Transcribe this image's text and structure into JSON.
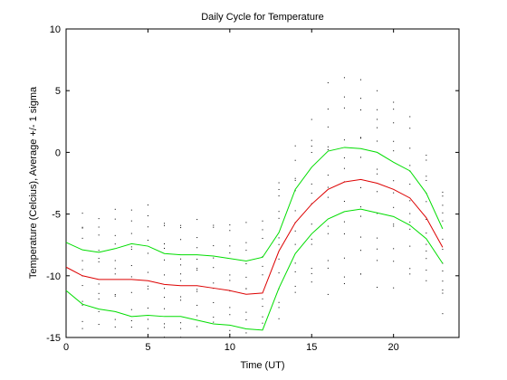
{
  "chart_data": {
    "type": "line",
    "title": "Daily Cycle for Temperature",
    "xlabel": "Time (UT)",
    "ylabel": "Temperature (Celcius), Average +/- 1 sigma",
    "xlim": [
      0,
      24
    ],
    "ylim": [
      -15,
      10
    ],
    "xticks": [
      0,
      5,
      10,
      15,
      20
    ],
    "yticks": [
      -15,
      -10,
      -5,
      0,
      5,
      10
    ],
    "grid": false,
    "x": [
      0,
      1,
      2,
      3,
      4,
      5,
      6,
      7,
      8,
      9,
      10,
      11,
      12,
      13,
      14,
      15,
      16,
      17,
      18,
      19,
      20,
      21,
      22,
      23
    ],
    "series": [
      {
        "color": "#00dd00",
        "values": [
          -7.3,
          -7.9,
          -8.1,
          -7.8,
          -7.4,
          -7.6,
          -8.2,
          -8.3,
          -8.3,
          -8.4,
          -8.6,
          -8.8,
          -8.5,
          -6.5,
          -3.0,
          -1.2,
          0.1,
          0.4,
          0.3,
          0.0,
          -0.8,
          -1.5,
          -3.3,
          -6.2
        ]
      },
      {
        "color": "#dd0000",
        "values": [
          -9.3,
          -10.0,
          -10.3,
          -10.3,
          -10.3,
          -10.4,
          -10.7,
          -10.8,
          -10.8,
          -11.0,
          -11.2,
          -11.5,
          -11.4,
          -8.0,
          -5.7,
          -4.2,
          -3.0,
          -2.4,
          -2.2,
          -2.5,
          -3.0,
          -3.7,
          -5.3,
          -7.7
        ]
      },
      {
        "color": "#00dd00",
        "values": [
          -11.2,
          -12.3,
          -12.7,
          -12.9,
          -13.3,
          -13.2,
          -13.3,
          -13.3,
          -13.6,
          -13.9,
          -14.0,
          -14.3,
          -14.4,
          -11.0,
          -8.2,
          -6.6,
          -5.4,
          -4.8,
          -4.6,
          -4.9,
          -5.2,
          -5.9,
          -7.0,
          -9.0
        ]
      }
    ],
    "scatter": {
      "color": "#000000",
      "spread": [
        2.6,
        2.7,
        2.8,
        2.9,
        3.0,
        3.0,
        2.8,
        2.7,
        2.8,
        2.9,
        2.9,
        3.0,
        3.1,
        3.2,
        3.3,
        3.7,
        4.2,
        4.4,
        4.4,
        4.2,
        3.9,
        3.3,
        2.7,
        2.6
      ],
      "per_hour": 13
    }
  }
}
